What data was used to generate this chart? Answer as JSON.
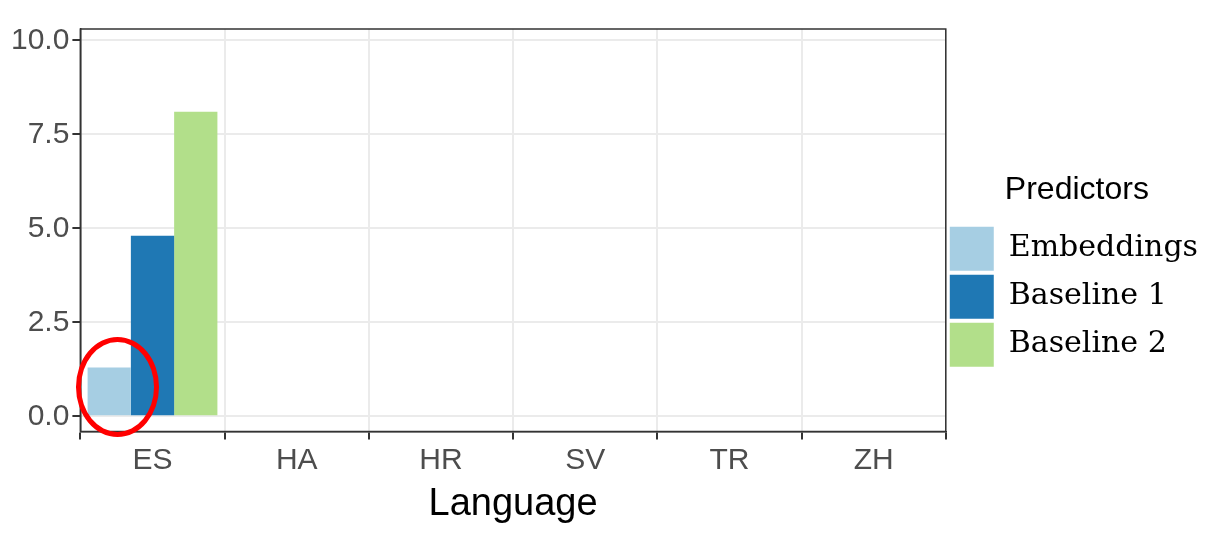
{
  "chart_data": {
    "type": "bar",
    "xlabel": "Language",
    "legend_title": "Predictors",
    "categories": [
      "ES",
      "HA",
      "HR",
      "SV",
      "TR",
      "ZH"
    ],
    "series": [
      {
        "name": "Embeddings",
        "color": "#a6cee3",
        "values": [
          1.3,
          null,
          null,
          null,
          null,
          null
        ]
      },
      {
        "name": "Baseline 1",
        "color": "#1f78b4",
        "values": [
          4.8,
          null,
          null,
          null,
          null,
          null
        ]
      },
      {
        "name": "Baseline 2",
        "color": "#b2df8a",
        "values": [
          8.1,
          null,
          null,
          null,
          null,
          null
        ]
      }
    ],
    "ylim": [
      -0.4,
      10.3
    ],
    "yticks": [
      {
        "value": 0,
        "label": "0.0"
      },
      2.5,
      {
        "value": 5,
        "label": "5.0"
      },
      7.5,
      {
        "value": 10,
        "label": "10.0"
      }
    ],
    "grid": true,
    "legend": "right"
  }
}
